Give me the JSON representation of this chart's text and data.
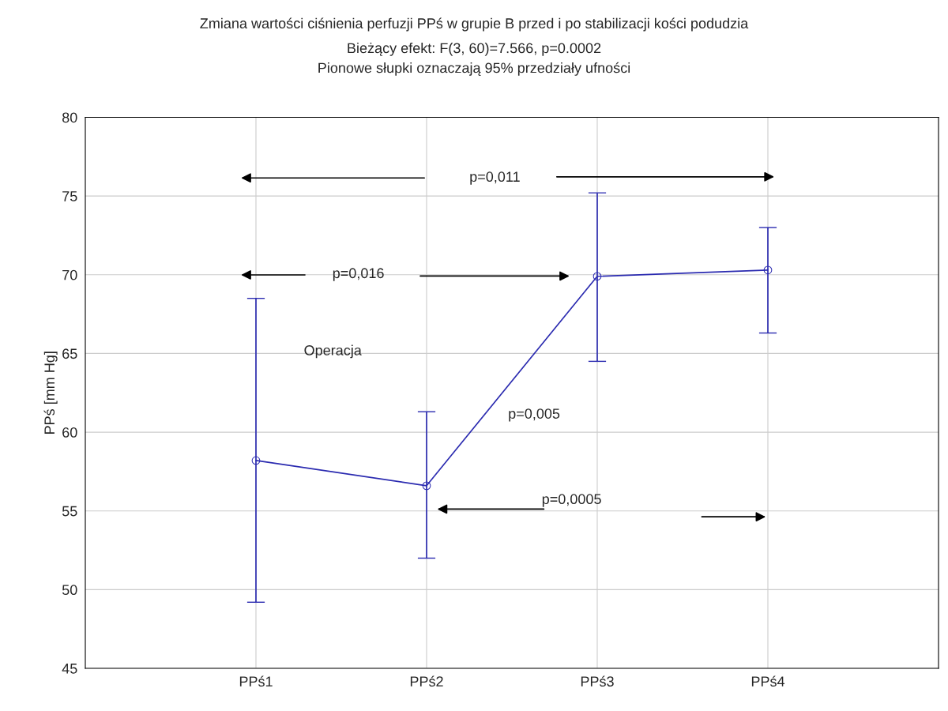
{
  "chart_data": {
    "type": "line",
    "title": "Zmiana wartości ciśnienia perfuzji PPś w grupie B przed i po stabilizacji kości podudzia",
    "subtitle": "Bieżący efekt: F(3, 60)=7.566, p=0.0002\nPionowe słupki oznaczają 95% przedziały ufności",
    "ylabel": "PPś [mm Hg]",
    "categories": [
      "PPś1",
      "PPś2",
      "PPś3",
      "PPś4"
    ],
    "series": [
      {
        "color": "#2b2bb0",
        "values": [
          58.2,
          56.6,
          69.9,
          70.3
        ],
        "errors": [
          [
            49.2,
            68.5
          ],
          [
            52.0,
            61.3
          ],
          [
            64.5,
            75.2
          ],
          [
            66.3,
            73.0
          ]
        ]
      }
    ],
    "ylim": [
      45,
      80
    ],
    "yticks": [
      45,
      50,
      55,
      60,
      65,
      70,
      75,
      80
    ],
    "grid": true,
    "marker": "circle",
    "line_style": "solid",
    "annotations": [
      "p=0,011",
      "p=0,016",
      "Operacja",
      "p=0,005",
      "p=0,0005"
    ]
  }
}
